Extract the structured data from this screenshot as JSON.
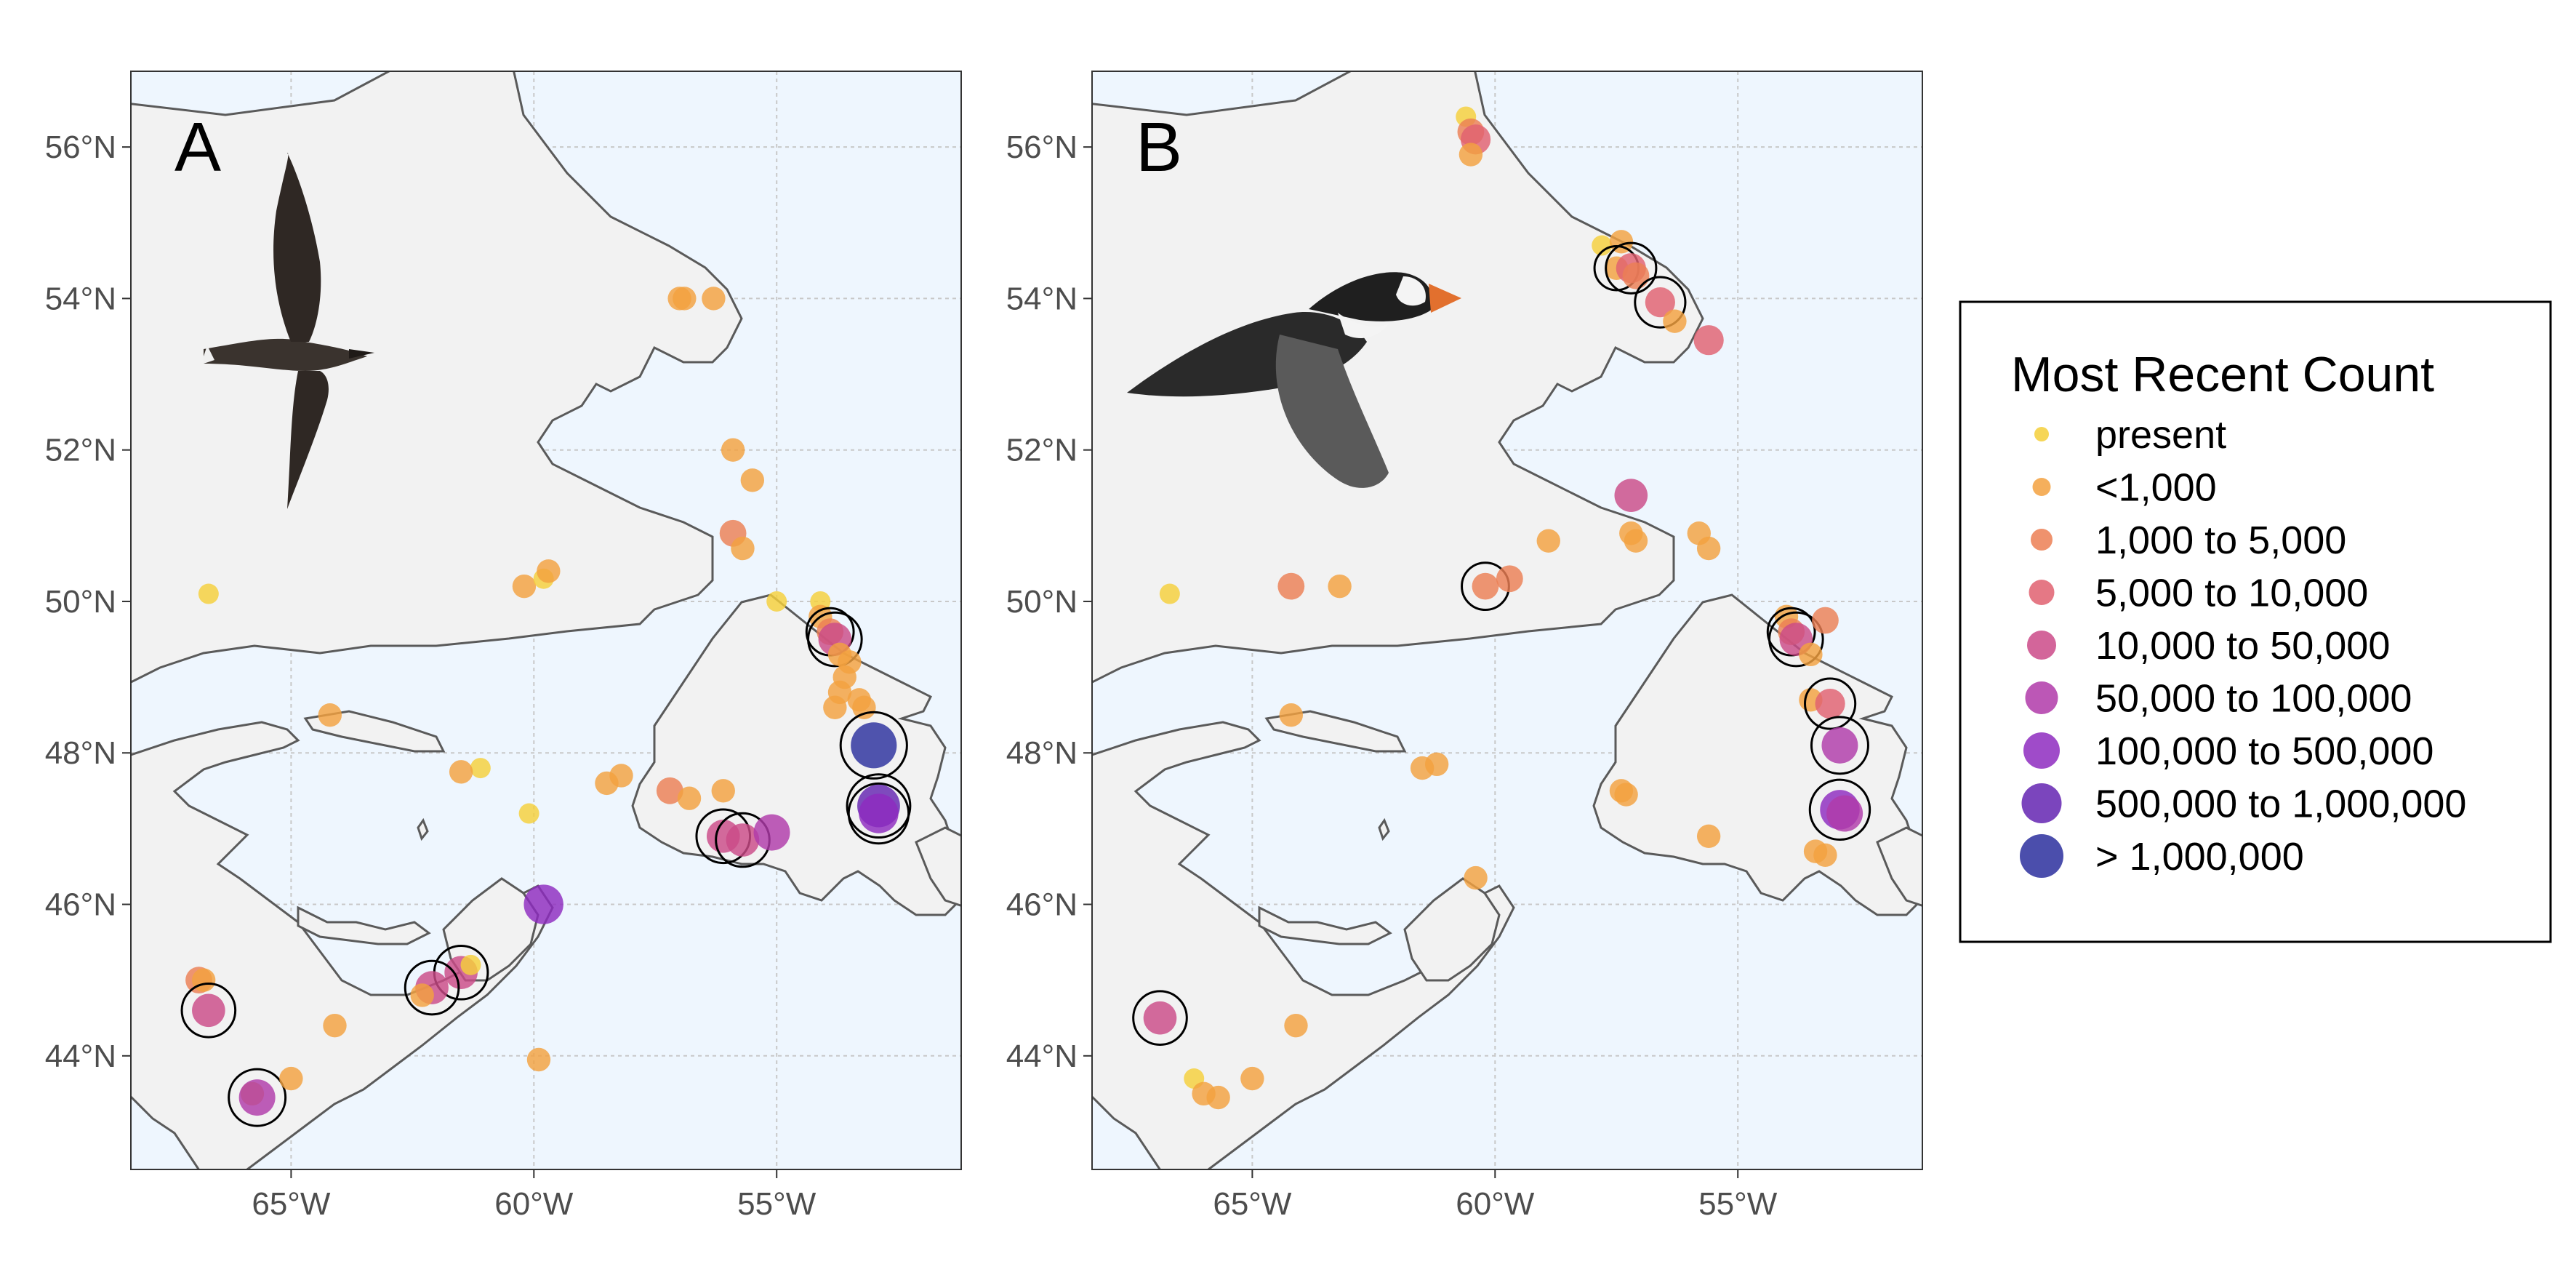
{
  "figure": {
    "panels": [
      {
        "letter": "A",
        "sites": [
          {
            "lon": -66.7,
            "lat": 50.1,
            "cat": 0
          },
          {
            "lon": -60.2,
            "lat": 50.2,
            "cat": 1
          },
          {
            "lon": -59.8,
            "lat": 50.3,
            "cat": 0
          },
          {
            "lon": -59.7,
            "lat": 50.4,
            "cat": 1
          },
          {
            "lon": -57.0,
            "lat": 54.0,
            "cat": 1
          },
          {
            "lon": -56.9,
            "lat": 54.0,
            "cat": 1
          },
          {
            "lon": -56.3,
            "lat": 54.0,
            "cat": 1
          },
          {
            "lon": -55.9,
            "lat": 52.0,
            "cat": 1
          },
          {
            "lon": -55.5,
            "lat": 51.6,
            "cat": 1
          },
          {
            "lon": -55.9,
            "lat": 50.9,
            "cat": 2
          },
          {
            "lon": -55.7,
            "lat": 50.7,
            "cat": 1
          },
          {
            "lon": -55.0,
            "lat": 50.0,
            "cat": 0
          },
          {
            "lon": -54.1,
            "lat": 50.0,
            "cat": 0
          },
          {
            "lon": -54.1,
            "lat": 49.8,
            "cat": 1
          },
          {
            "lon": -53.9,
            "lat": 49.6,
            "cat": 2,
            "circled": true
          },
          {
            "lon": -53.8,
            "lat": 49.5,
            "cat": 4,
            "circled": true
          },
          {
            "lon": -53.7,
            "lat": 49.3,
            "cat": 1
          },
          {
            "lon": -53.5,
            "lat": 49.2,
            "cat": 1
          },
          {
            "lon": -53.6,
            "lat": 49.0,
            "cat": 1
          },
          {
            "lon": -53.7,
            "lat": 48.8,
            "cat": 1
          },
          {
            "lon": -53.8,
            "lat": 48.6,
            "cat": 1
          },
          {
            "lon": -53.3,
            "lat": 48.7,
            "cat": 1
          },
          {
            "lon": -53.2,
            "lat": 48.6,
            "cat": 1
          },
          {
            "lon": -53.0,
            "lat": 48.1,
            "cat": 8,
            "circled": true
          },
          {
            "lon": -52.9,
            "lat": 47.3,
            "cat": 7,
            "circled": true
          },
          {
            "lon": -52.9,
            "lat": 47.2,
            "cat": 6,
            "circled": true
          },
          {
            "lon": -56.1,
            "lat": 47.5,
            "cat": 1
          },
          {
            "lon": -57.2,
            "lat": 47.5,
            "cat": 2
          },
          {
            "lon": -56.8,
            "lat": 47.4,
            "cat": 1
          },
          {
            "lon": -58.2,
            "lat": 47.7,
            "cat": 1
          },
          {
            "lon": -58.5,
            "lat": 47.6,
            "cat": 1
          },
          {
            "lon": -56.1,
            "lat": 46.9,
            "cat": 4,
            "circled": true
          },
          {
            "lon": -55.7,
            "lat": 46.85,
            "cat": 4,
            "circled": true
          },
          {
            "lon": -55.1,
            "lat": 46.95,
            "cat": 5
          },
          {
            "lon": -59.8,
            "lat": 46.0,
            "cat": 6
          },
          {
            "lon": -60.1,
            "lat": 47.2,
            "cat": 0
          },
          {
            "lon": -61.1,
            "lat": 47.8,
            "cat": 0
          },
          {
            "lon": -61.5,
            "lat": 47.75,
            "cat": 1
          },
          {
            "lon": -64.2,
            "lat": 48.5,
            "cat": 1
          },
          {
            "lon": -59.9,
            "lat": 43.95,
            "cat": 1
          },
          {
            "lon": -61.5,
            "lat": 45.1,
            "cat": 4,
            "circled": true
          },
          {
            "lon": -61.3,
            "lat": 45.2,
            "cat": 0
          },
          {
            "lon": -62.1,
            "lat": 44.9,
            "cat": 4,
            "circled": true
          },
          {
            "lon": -62.3,
            "lat": 44.8,
            "cat": 1
          },
          {
            "lon": -64.1,
            "lat": 44.4,
            "cat": 1
          },
          {
            "lon": -66.9,
            "lat": 45.0,
            "cat": 2
          },
          {
            "lon": -66.8,
            "lat": 45.0,
            "cat": 1
          },
          {
            "lon": -66.7,
            "lat": 44.6,
            "cat": 4,
            "circled": true
          },
          {
            "lon": -65.8,
            "lat": 43.5,
            "cat": 1
          },
          {
            "lon": -65.7,
            "lat": 43.45,
            "cat": 5,
            "circled": true
          },
          {
            "lon": -65.0,
            "lat": 43.7,
            "cat": 1
          }
        ]
      },
      {
        "letter": "B",
        "sites": [
          {
            "lon": -60.6,
            "lat": 56.4,
            "cat": 0
          },
          {
            "lon": -60.5,
            "lat": 56.2,
            "cat": 2
          },
          {
            "lon": -60.4,
            "lat": 56.1,
            "cat": 3
          },
          {
            "lon": -60.5,
            "lat": 55.9,
            "cat": 1
          },
          {
            "lon": -57.8,
            "lat": 54.7,
            "cat": 0
          },
          {
            "lon": -57.4,
            "lat": 54.75,
            "cat": 1
          },
          {
            "lon": -57.5,
            "lat": 54.4,
            "cat": 1,
            "circled": true
          },
          {
            "lon": -57.2,
            "lat": 54.4,
            "cat": 3,
            "circled": true
          },
          {
            "lon": -57.1,
            "lat": 54.3,
            "cat": 2
          },
          {
            "lon": -56.6,
            "lat": 53.95,
            "cat": 3,
            "circled": true
          },
          {
            "lon": -56.3,
            "lat": 53.7,
            "cat": 1
          },
          {
            "lon": -55.6,
            "lat": 53.45,
            "cat": 3
          },
          {
            "lon": -57.2,
            "lat": 51.4,
            "cat": 4
          },
          {
            "lon": -57.2,
            "lat": 50.9,
            "cat": 1
          },
          {
            "lon": -57.1,
            "lat": 50.8,
            "cat": 1
          },
          {
            "lon": -55.8,
            "lat": 50.9,
            "cat": 1
          },
          {
            "lon": -55.6,
            "lat": 50.7,
            "cat": 1
          },
          {
            "lon": -58.9,
            "lat": 50.8,
            "cat": 1
          },
          {
            "lon": -60.2,
            "lat": 50.2,
            "cat": 2,
            "circled": true
          },
          {
            "lon": -59.7,
            "lat": 50.3,
            "cat": 2
          },
          {
            "lon": -64.2,
            "lat": 50.2,
            "cat": 2
          },
          {
            "lon": -63.2,
            "lat": 50.2,
            "cat": 1
          },
          {
            "lon": -66.7,
            "lat": 50.1,
            "cat": 0
          },
          {
            "lon": -54.0,
            "lat": 49.8,
            "cat": 1
          },
          {
            "lon": -53.9,
            "lat": 49.6,
            "cat": 2,
            "circled": true
          },
          {
            "lon": -53.8,
            "lat": 49.5,
            "cat": 4,
            "circled": true
          },
          {
            "lon": -53.2,
            "lat": 49.75,
            "cat": 2
          },
          {
            "lon": -53.5,
            "lat": 49.3,
            "cat": 1
          },
          {
            "lon": -53.5,
            "lat": 48.7,
            "cat": 1
          },
          {
            "lon": -53.1,
            "lat": 48.65,
            "cat": 3,
            "circled": true
          },
          {
            "lon": -52.9,
            "lat": 48.1,
            "cat": 5,
            "circled": true
          },
          {
            "lon": -52.9,
            "lat": 47.25,
            "cat": 6,
            "circled": true
          },
          {
            "lon": -52.8,
            "lat": 47.2,
            "cat": 5
          },
          {
            "lon": -53.4,
            "lat": 46.7,
            "cat": 1
          },
          {
            "lon": -53.2,
            "lat": 46.65,
            "cat": 1
          },
          {
            "lon": -55.6,
            "lat": 46.9,
            "cat": 1
          },
          {
            "lon": -57.4,
            "lat": 47.5,
            "cat": 1
          },
          {
            "lon": -57.3,
            "lat": 47.45,
            "cat": 1
          },
          {
            "lon": -61.5,
            "lat": 47.8,
            "cat": 1
          },
          {
            "lon": -61.2,
            "lat": 47.85,
            "cat": 1
          },
          {
            "lon": -64.2,
            "lat": 48.5,
            "cat": 1
          },
          {
            "lon": -60.4,
            "lat": 46.35,
            "cat": 1
          },
          {
            "lon": -64.1,
            "lat": 44.4,
            "cat": 1
          },
          {
            "lon": -66.9,
            "lat": 44.5,
            "cat": 4,
            "circled": true
          },
          {
            "lon": -66.2,
            "lat": 43.7,
            "cat": 0
          },
          {
            "lon": -66.0,
            "lat": 43.5,
            "cat": 1
          },
          {
            "lon": -65.7,
            "lat": 43.45,
            "cat": 1
          },
          {
            "lon": -65.0,
            "lat": 43.7,
            "cat": 1
          }
        ]
      }
    ],
    "lon_ticks": [
      "65°W",
      "60°W",
      "55°W"
    ],
    "lon_tick_values": [
      -65,
      -60,
      -55
    ],
    "lat_ticks": [
      "56°N",
      "54°N",
      "52°N",
      "50°N",
      "48°N",
      "46°N",
      "44°N"
    ],
    "lat_tick_values": [
      56,
      54,
      52,
      50,
      48,
      46,
      44
    ],
    "extent": {
      "lon": [
        -68.3,
        -51.2
      ],
      "lat": [
        42.5,
        57.0
      ]
    },
    "colors": {
      "water": "#eef6fe",
      "land": "#f2f2f2",
      "coast": "#5a5a5a",
      "grid": "#c8c8c8"
    }
  },
  "legend": {
    "title": "Most Recent Count",
    "items": [
      {
        "label": "present",
        "color": "#f5cf3a"
      },
      {
        "label": "<1,000",
        "color": "#f3a13f"
      },
      {
        "label": "1,000 to 5,000",
        "color": "#ec7f54"
      },
      {
        "label": "5,000 to 10,000",
        "color": "#e06070"
      },
      {
        "label": "10,000 to 50,000",
        "color": "#cb4a88"
      },
      {
        "label": "50,000 to 100,000",
        "color": "#b03aa9"
      },
      {
        "label": "100,000 to 500,000",
        "color": "#8e2bbf"
      },
      {
        "label": "500,000 to 1,000,000",
        "color": "#6424b1"
      },
      {
        "label": "> 1,000,000",
        "color": "#2b2f9e"
      }
    ]
  }
}
